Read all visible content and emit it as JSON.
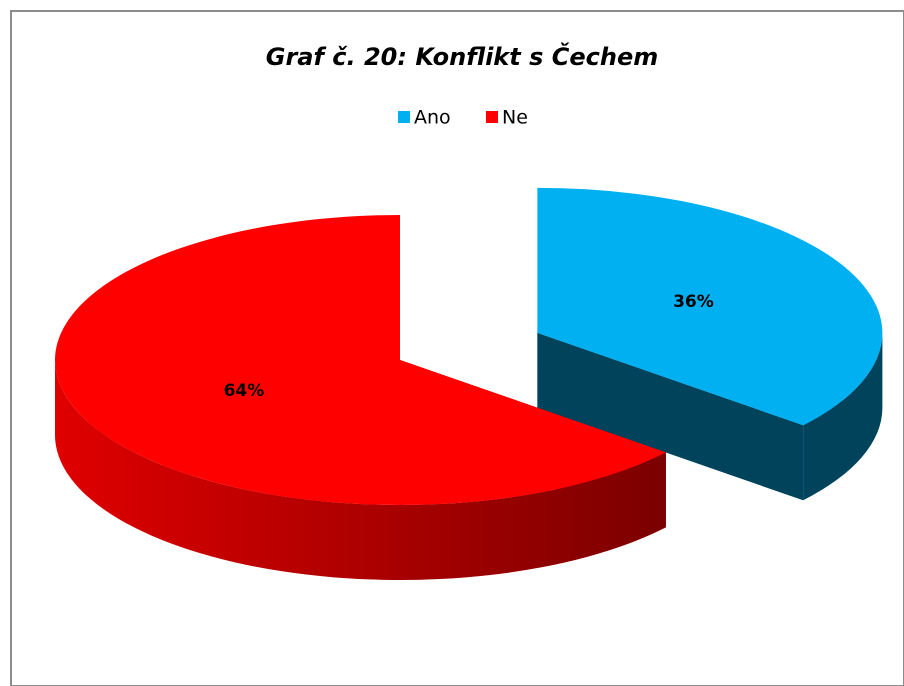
{
  "chart_data": {
    "type": "pie",
    "title": "Graf č. 20: Konflikt s Čechem",
    "categories": [
      "Ano",
      "Ne"
    ],
    "values": [
      36,
      64
    ],
    "value_labels": [
      "36%",
      "64%"
    ],
    "colors": [
      "#00b0f0",
      "#ff0000"
    ],
    "legend": "top"
  }
}
